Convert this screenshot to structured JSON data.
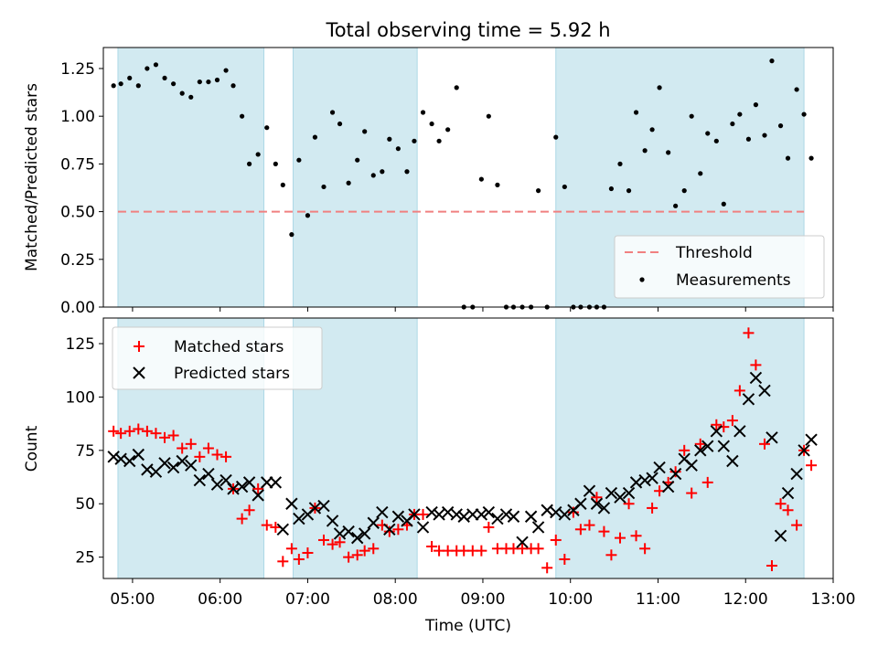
{
  "chart_data": [
    {
      "type": "scatter",
      "title": "Total observing time = 5.92 h",
      "ylabel": "Matched/Predicted stars",
      "xlabel": "",
      "xlim": [
        "04:40",
        "13:00"
      ],
      "ylim": [
        0,
        1.36
      ],
      "yticks": [
        "0.00",
        "0.25",
        "0.50",
        "0.75",
        "1.00",
        "1.25"
      ],
      "legend_position": "lower-right",
      "observing_windows": [
        [
          "04:50",
          "06:30"
        ],
        [
          "06:50",
          "08:15"
        ],
        [
          "09:50",
          "12:40"
        ]
      ],
      "window_color": "#add8e6",
      "threshold": {
        "name": "Threshold",
        "value": 0.5,
        "color": "#f08080"
      },
      "series": [
        {
          "name": "Measurements",
          "color": "#000000",
          "x": [
            "04:47",
            "04:52",
            "04:58",
            "05:04",
            "05:10",
            "05:16",
            "05:22",
            "05:28",
            "05:34",
            "05:40",
            "05:46",
            "05:52",
            "05:58",
            "06:04",
            "06:09",
            "06:15",
            "06:20",
            "06:26",
            "06:32",
            "06:38",
            "06:43",
            "06:49",
            "06:54",
            "07:00",
            "07:05",
            "07:11",
            "07:17",
            "07:22",
            "07:28",
            "07:34",
            "07:39",
            "07:45",
            "07:51",
            "07:56",
            "08:02",
            "08:08",
            "08:13",
            "08:19",
            "08:25",
            "08:30",
            "08:36",
            "08:42",
            "08:47",
            "08:53",
            "08:59",
            "09:04",
            "09:10",
            "09:16",
            "09:21",
            "09:27",
            "09:33",
            "09:38",
            "09:44",
            "09:50",
            "09:56",
            "10:02",
            "10:07",
            "10:13",
            "10:18",
            "10:23",
            "10:28",
            "10:34",
            "10:40",
            "10:45",
            "10:51",
            "10:56",
            "11:01",
            "11:07",
            "11:12",
            "11:18",
            "11:23",
            "11:29",
            "11:34",
            "11:40",
            "11:45",
            "11:51",
            "11:56",
            "12:02",
            "12:07",
            "12:13",
            "12:18",
            "12:24",
            "12:29",
            "12:35",
            "12:40",
            "12:45"
          ],
          "y": [
            1.16,
            1.17,
            1.2,
            1.16,
            1.25,
            1.27,
            1.2,
            1.17,
            1.12,
            1.1,
            1.18,
            1.18,
            1.19,
            1.24,
            1.16,
            1.0,
            0.75,
            0.8,
            0.94,
            0.75,
            0.64,
            0.38,
            0.77,
            0.48,
            0.89,
            0.63,
            1.02,
            0.96,
            0.65,
            0.77,
            0.92,
            0.69,
            0.71,
            0.88,
            0.83,
            0.71,
            0.87,
            1.02,
            0.96,
            0.87,
            0.93,
            1.15,
            0.0,
            0.0,
            0.67,
            1.0,
            0.64,
            0.0,
            0.0,
            0.0,
            0.0,
            0.61,
            0.0,
            0.89,
            0.63,
            0.0,
            0.0,
            0.0,
            0.0,
            0.0,
            0.62,
            0.75,
            0.61,
            1.02,
            0.82,
            0.93,
            1.15,
            0.81,
            0.53,
            0.61,
            1.0,
            0.7,
            0.91,
            0.87,
            0.54,
            0.96,
            1.01,
            0.88,
            1.06,
            0.9,
            1.29,
            0.95,
            0.78,
            1.14,
            1.01,
            0.78
          ]
        }
      ]
    },
    {
      "type": "scatter",
      "title": "",
      "ylabel": "Count",
      "xlabel": "Time (UTC)",
      "xlim": [
        "04:40",
        "13:00"
      ],
      "ylim": [
        15,
        137
      ],
      "yticks": [
        "25",
        "50",
        "75",
        "100",
        "125"
      ],
      "xticks": [
        "05:00",
        "06:00",
        "07:00",
        "08:00",
        "09:00",
        "10:00",
        "11:00",
        "12:00",
        "13:00"
      ],
      "legend_position": "upper-left",
      "observing_windows": [
        [
          "04:50",
          "06:30"
        ],
        [
          "06:50",
          "08:15"
        ],
        [
          "09:50",
          "12:40"
        ]
      ],
      "window_color": "#add8e6",
      "series": [
        {
          "name": "Matched stars",
          "marker": "plus",
          "color": "#ff0000",
          "x": [
            "04:47",
            "04:52",
            "04:58",
            "05:04",
            "05:10",
            "05:16",
            "05:22",
            "05:28",
            "05:34",
            "05:40",
            "05:46",
            "05:52",
            "05:58",
            "06:04",
            "06:09",
            "06:15",
            "06:20",
            "06:26",
            "06:32",
            "06:38",
            "06:43",
            "06:49",
            "06:54",
            "07:00",
            "07:05",
            "07:11",
            "07:17",
            "07:22",
            "07:28",
            "07:34",
            "07:39",
            "07:45",
            "07:51",
            "07:56",
            "08:02",
            "08:08",
            "08:13",
            "08:19",
            "08:25",
            "08:30",
            "08:36",
            "08:42",
            "08:47",
            "08:53",
            "08:59",
            "09:04",
            "09:10",
            "09:16",
            "09:21",
            "09:27",
            "09:33",
            "09:38",
            "09:44",
            "09:50",
            "09:56",
            "10:02",
            "10:07",
            "10:13",
            "10:18",
            "10:23",
            "10:28",
            "10:34",
            "10:40",
            "10:45",
            "10:51",
            "10:56",
            "11:01",
            "11:07",
            "11:12",
            "11:18",
            "11:23",
            "11:29",
            "11:34",
            "11:40",
            "11:45",
            "11:51",
            "11:56",
            "12:02",
            "12:07",
            "12:13",
            "12:18",
            "12:24",
            "12:29",
            "12:35",
            "12:40",
            "12:45"
          ],
          "y": [
            84,
            83,
            84,
            85,
            84,
            83,
            81,
            82,
            76,
            78,
            72,
            76,
            73,
            72,
            57,
            43,
            47,
            57,
            40,
            39,
            23,
            29,
            24,
            27,
            48,
            33,
            31,
            32,
            25,
            26,
            28,
            29,
            40,
            37,
            38,
            40,
            45,
            45,
            30,
            28,
            28,
            28,
            28,
            28,
            28,
            39,
            29,
            29,
            29,
            29,
            29,
            29,
            20,
            33,
            24,
            46,
            38,
            40,
            53,
            37,
            26,
            34,
            50,
            35,
            29,
            48,
            56,
            60,
            65,
            75,
            55,
            78,
            60,
            87,
            86,
            89,
            103,
            130,
            115,
            78,
            21,
            50,
            47,
            40,
            75,
            68
          ]
        },
        {
          "name": "Predicted stars",
          "marker": "x",
          "color": "#000000",
          "x": [
            "04:47",
            "04:52",
            "04:58",
            "05:04",
            "05:10",
            "05:16",
            "05:22",
            "05:28",
            "05:34",
            "05:40",
            "05:46",
            "05:52",
            "05:58",
            "06:04",
            "06:09",
            "06:15",
            "06:20",
            "06:26",
            "06:32",
            "06:38",
            "06:43",
            "06:49",
            "06:54",
            "07:00",
            "07:05",
            "07:11",
            "07:17",
            "07:22",
            "07:28",
            "07:34",
            "07:39",
            "07:45",
            "07:51",
            "07:56",
            "08:02",
            "08:08",
            "08:13",
            "08:19",
            "08:25",
            "08:30",
            "08:36",
            "08:42",
            "08:47",
            "08:53",
            "08:59",
            "09:04",
            "09:10",
            "09:16",
            "09:21",
            "09:27",
            "09:33",
            "09:38",
            "09:44",
            "09:50",
            "09:56",
            "10:02",
            "10:07",
            "10:13",
            "10:18",
            "10:23",
            "10:28",
            "10:34",
            "10:40",
            "10:45",
            "10:51",
            "10:56",
            "11:01",
            "11:07",
            "11:12",
            "11:18",
            "11:23",
            "11:29",
            "11:34",
            "11:40",
            "11:45",
            "11:51",
            "11:56",
            "12:02",
            "12:07",
            "12:13",
            "12:18",
            "12:24",
            "12:29",
            "12:35",
            "12:40",
            "12:45"
          ],
          "y": [
            72,
            71,
            70,
            73,
            66,
            65,
            69,
            67,
            70,
            68,
            61,
            64,
            59,
            61,
            57,
            58,
            60,
            54,
            60,
            60,
            38,
            50,
            43,
            45,
            48,
            49,
            42,
            36,
            37,
            34,
            36,
            41,
            46,
            38,
            44,
            42,
            45,
            39,
            46,
            45,
            46,
            45,
            44,
            45,
            45,
            46,
            43,
            45,
            44,
            32,
            44,
            39,
            47,
            46,
            45,
            47,
            50,
            56,
            50,
            48,
            55,
            53,
            55,
            60,
            61,
            62,
            67,
            58,
            64,
            71,
            68,
            75,
            77,
            84,
            77,
            70,
            84,
            99,
            109,
            103,
            81,
            35,
            55,
            64,
            75,
            80
          ]
        }
      ]
    }
  ]
}
